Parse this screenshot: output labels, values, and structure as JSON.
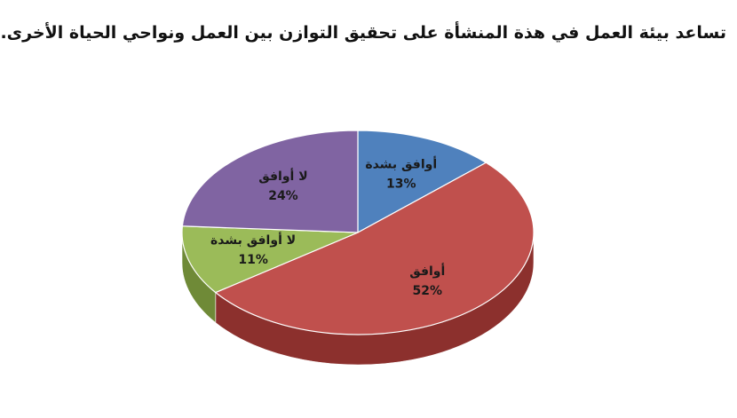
{
  "chart_data": {
    "type": "pie",
    "title": "تساعد بيئة العمل في هذة المنشأة على تحقيق التوازن بين العمل ونواحي الحياة الأخرى.",
    "slices": [
      {
        "label": "أوافق بشدة",
        "value": 13,
        "value_label": "13%",
        "color": "#4f81bd",
        "side": "#37608f"
      },
      {
        "label": "أوافق",
        "value": 52,
        "value_label": "52%",
        "color": "#c0504d",
        "side": "#8c302d"
      },
      {
        "label": "لا أوافق بشدة",
        "value": 11,
        "value_label": "11%",
        "color": "#9bbb59",
        "side": "#6f8a37"
      },
      {
        "label": "لا أوافق",
        "value": 24,
        "value_label": "24%",
        "color": "#8064a2",
        "side": "#5a4478"
      }
    ]
  }
}
